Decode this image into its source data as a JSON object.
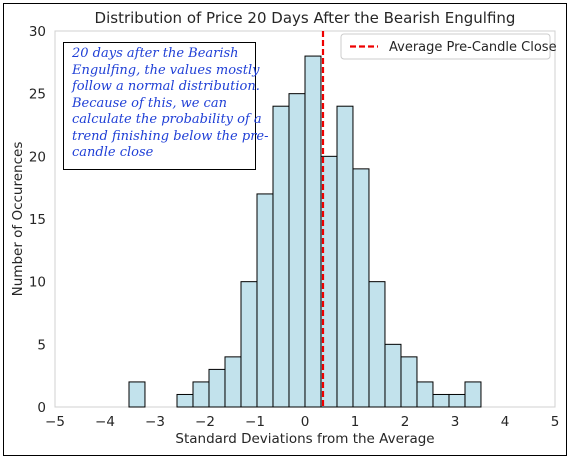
{
  "chart_data": {
    "type": "bar",
    "title": "Distribution of Price 20 Days After the Bearish Engulfing",
    "xlabel": "Standard Deviations from the Average",
    "ylabel": "Number of Occurences",
    "xlim": [
      -5,
      5
    ],
    "ylim": [
      0,
      30
    ],
    "x_ticks": [
      "−5",
      "−4",
      "−3",
      "−2",
      "−1",
      "0",
      "1",
      "2",
      "3",
      "4",
      "5"
    ],
    "y_ticks": [
      "0",
      "5",
      "10",
      "15",
      "20",
      "25",
      "30"
    ],
    "grid": false,
    "bin_width": 0.3194,
    "bins": [
      {
        "x0": -3.52,
        "count": 2
      },
      {
        "x0": -3.2,
        "count": 0
      },
      {
        "x0": -2.88,
        "count": 0
      },
      {
        "x0": -2.56,
        "count": 1
      },
      {
        "x0": -2.24,
        "count": 2
      },
      {
        "x0": -1.92,
        "count": 3
      },
      {
        "x0": -1.6,
        "count": 4
      },
      {
        "x0": -1.28,
        "count": 10
      },
      {
        "x0": -0.96,
        "count": 17
      },
      {
        "x0": -0.64,
        "count": 24
      },
      {
        "x0": -0.32,
        "count": 25
      },
      {
        "x0": 0.0,
        "count": 28
      },
      {
        "x0": 0.32,
        "count": 20
      },
      {
        "x0": 0.64,
        "count": 24
      },
      {
        "x0": 0.96,
        "count": 19
      },
      {
        "x0": 1.28,
        "count": 10
      },
      {
        "x0": 1.6,
        "count": 5
      },
      {
        "x0": 1.92,
        "count": 4
      },
      {
        "x0": 2.24,
        "count": 2
      },
      {
        "x0": 2.56,
        "count": 1
      },
      {
        "x0": 2.88,
        "count": 1
      },
      {
        "x0": 3.2,
        "count": 2
      }
    ],
    "bar_color": "#c2e2ec",
    "bar_edge_color": "#000000",
    "reference_line": {
      "name": "Average Pre-Candle Close",
      "x": 0.36,
      "color": "#ee0000",
      "style": "dashed"
    },
    "legend_position": "top-right",
    "annotation": {
      "lines": [
        "20 days after the Bearish",
        "Engulfing, the values mostly",
        "follow a normal distribution.",
        "Because of this, we can",
        "calculate the probability of a",
        "trend finishing below the pre-",
        "candle close"
      ],
      "color": "#1f3fd6",
      "position": "top-left"
    }
  }
}
